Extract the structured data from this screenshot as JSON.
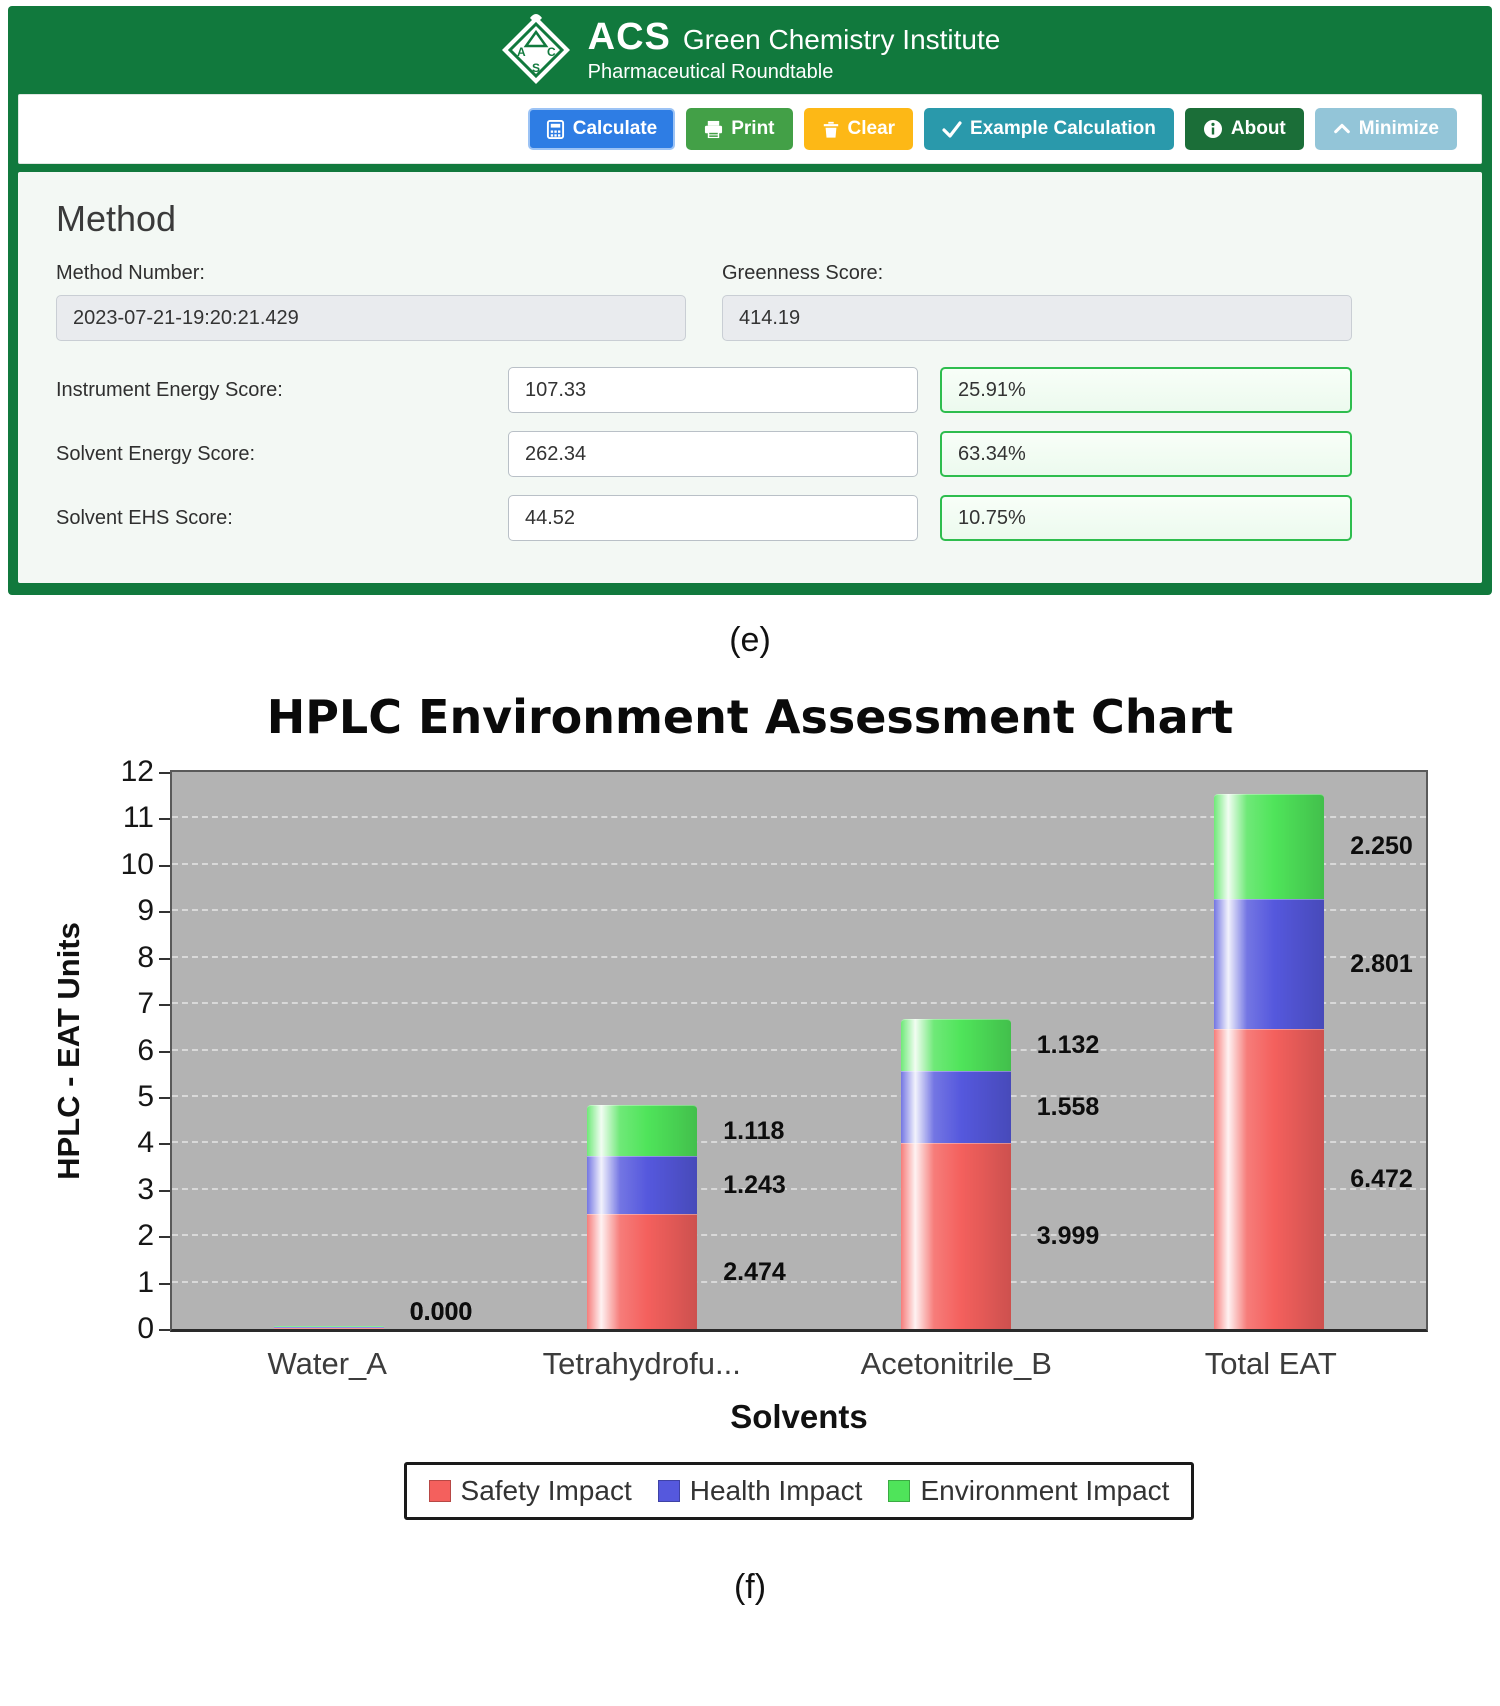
{
  "app": {
    "header": {
      "brand": "ACS",
      "title": "Green Chemistry Institute",
      "subtitle": "Pharmaceutical Roundtable"
    },
    "toolbar": {
      "buttons": [
        {
          "id": "calculate",
          "label": "Calculate",
          "color": "#2e7de4",
          "border": "#9cc3f5"
        },
        {
          "id": "print",
          "label": "Print",
          "color": "#43a047",
          "border": "#43a047"
        },
        {
          "id": "clear",
          "label": "Clear",
          "color": "#fdb816",
          "border": "#fdb816"
        },
        {
          "id": "example",
          "label": "Example Calculation",
          "color": "#2a99ab",
          "border": "#2a99ab"
        },
        {
          "id": "about",
          "label": "About",
          "color": "#1b6e38",
          "border": "#1b6e38"
        },
        {
          "id": "minimize",
          "label": "Minimize",
          "color": "#93c5d8",
          "border": "#93c5d8"
        }
      ]
    },
    "method": {
      "title": "Method",
      "method_number_label": "Method Number:",
      "method_number": "2023-07-21-19:20:21.429",
      "greenness_label": "Greenness Score:",
      "greenness_score": "414.19",
      "rows": [
        {
          "label": "Instrument Energy Score:",
          "value": "107.33",
          "percent": "25.91%"
        },
        {
          "label": "Solvent Energy Score:",
          "value": "262.34",
          "percent": "63.34%"
        },
        {
          "label": "Solvent EHS Score:",
          "value": "44.52",
          "percent": "10.75%"
        }
      ]
    },
    "accent_green": "#11793d",
    "percent_border_green": "#2ebd4e"
  },
  "figure_labels": {
    "top": "(e)",
    "bottom": "(f)"
  },
  "chart_data": {
    "type": "bar",
    "stacked": true,
    "title": "HPLC Environment Assessment Chart",
    "xlabel": "Solvents",
    "ylabel": "HPLC - EAT Units",
    "ylim": [
      0,
      12
    ],
    "grid": true,
    "legend_position": "bottom",
    "categories": [
      "Water_A",
      "Tetrahydrofu...",
      "Acetonitrile_B",
      "Total EAT"
    ],
    "series": [
      {
        "name": "Safety Impact",
        "color": "#f4605d",
        "values": [
          0.0,
          2.474,
          3.999,
          6.472
        ]
      },
      {
        "name": "Health Impact",
        "color": "#5558dd",
        "values": [
          0.0,
          1.243,
          1.558,
          2.801
        ]
      },
      {
        "name": "Environment Impact",
        "color": "#4fe45a",
        "values": [
          0.0,
          1.118,
          1.132,
          2.25
        ]
      }
    ],
    "totals": [
      0.0,
      4.835,
      6.689,
      11.523
    ]
  }
}
